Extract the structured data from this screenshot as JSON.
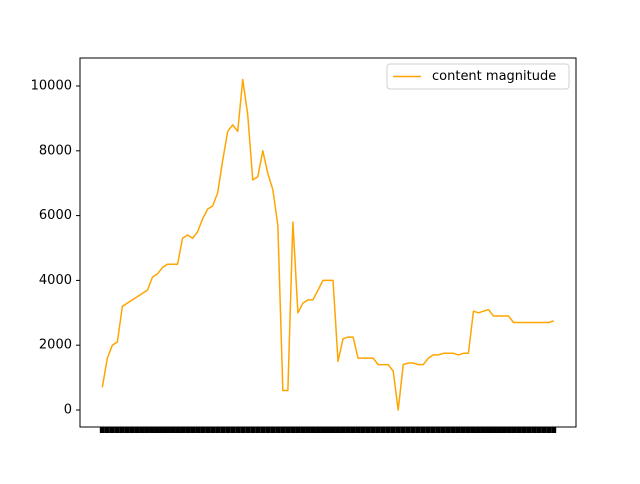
{
  "chart_data": {
    "type": "line",
    "categories": [
      null,
      null,
      null,
      null,
      null,
      null,
      null,
      null,
      null,
      null,
      null,
      null,
      null,
      null,
      null,
      null,
      null,
      null,
      null,
      null,
      null,
      null,
      null,
      null,
      null,
      null,
      null,
      null,
      null,
      null,
      null,
      null,
      null,
      null,
      null,
      null,
      null,
      null,
      null,
      null,
      null,
      null,
      null,
      null,
      null,
      null,
      null,
      null,
      null,
      null,
      null,
      null,
      null,
      null,
      null,
      null,
      null,
      null,
      null,
      null,
      null,
      null,
      null,
      null,
      null,
      null,
      null,
      null,
      null,
      null,
      null,
      null,
      null,
      null,
      null,
      null,
      null,
      null,
      null,
      null,
      null,
      null,
      null,
      null,
      null,
      null,
      null,
      null,
      null,
      null,
      null
    ],
    "series": [
      {
        "name": "content magnitude",
        "color": "#ffa500",
        "values": [
          700,
          1600,
          2000,
          2100,
          3200,
          3300,
          3400,
          3500,
          3600,
          3700,
          4100,
          4200,
          4400,
          4500,
          4500,
          4500,
          5300,
          5400,
          5300,
          5500,
          5900,
          6200,
          6300,
          6700,
          7700,
          8600,
          8800,
          8600,
          10200,
          9100,
          7100,
          7200,
          8000,
          7300,
          6800,
          5700,
          600,
          600,
          5800,
          3000,
          3300,
          3400,
          3400,
          3700,
          4000,
          4000,
          4000,
          1500,
          2200,
          2250,
          2250,
          1600,
          1600,
          1600,
          1600,
          1400,
          1400,
          1400,
          1200,
          0,
          1400,
          1450,
          1450,
          1400,
          1400,
          1600,
          1700,
          1700,
          1750,
          1750,
          1750,
          1700,
          1750,
          1750,
          3050,
          3000,
          3050,
          3100,
          2900,
          2900,
          2900,
          2900,
          2700,
          2700,
          2700,
          2700,
          2700,
          2700,
          2700,
          2700,
          2750
        ]
      }
    ],
    "ylim": [
      -525,
      10864
    ],
    "yticks": [
      0,
      2000,
      4000,
      6000,
      8000,
      10000
    ],
    "legend": "upper right"
  }
}
